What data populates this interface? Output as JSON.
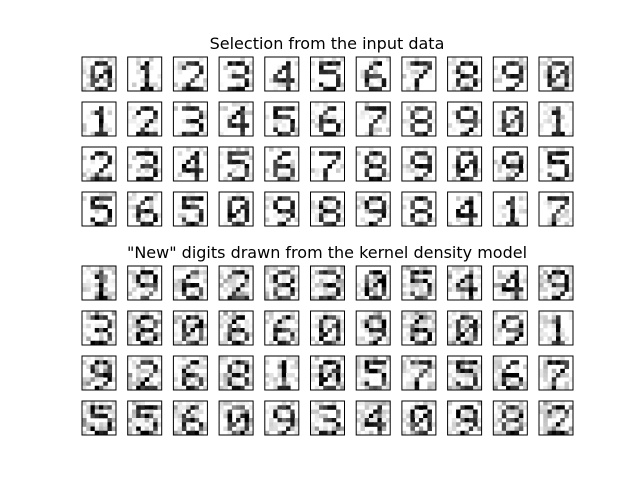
{
  "figure": {
    "background": "#ffffff",
    "panel_border_color": "#000000",
    "colormap": "binary",
    "grid_rows": 4,
    "grid_cols": 11
  },
  "chart_data": [
    {
      "type": "heatmap",
      "title": "Selection from the input data",
      "image_size": [
        8,
        8
      ],
      "value_range": [
        0,
        16
      ],
      "digit_labels": [
        [
          0,
          1,
          2,
          3,
          4,
          5,
          6,
          7,
          8,
          9,
          0
        ],
        [
          1,
          2,
          3,
          4,
          5,
          6,
          7,
          8,
          9,
          0,
          1
        ],
        [
          2,
          3,
          4,
          5,
          6,
          7,
          8,
          9,
          0,
          9,
          5
        ],
        [
          5,
          6,
          5,
          0,
          9,
          8,
          9,
          8,
          4,
          1,
          7
        ]
      ]
    },
    {
      "type": "heatmap",
      "title": "\"New\" digits drawn from the kernel density model",
      "image_size": [
        8,
        8
      ],
      "value_range": [
        0,
        16
      ],
      "digit_labels": [
        [
          1,
          9,
          6,
          2,
          8,
          3,
          0,
          5,
          4,
          4,
          9
        ],
        [
          3,
          8,
          0,
          6,
          6,
          0,
          9,
          6,
          0,
          9,
          1
        ],
        [
          9,
          2,
          6,
          8,
          1,
          0,
          5,
          7,
          5,
          6,
          7
        ],
        [
          5,
          5,
          6,
          0,
          9,
          3,
          4,
          0,
          9,
          8,
          2
        ]
      ]
    }
  ]
}
